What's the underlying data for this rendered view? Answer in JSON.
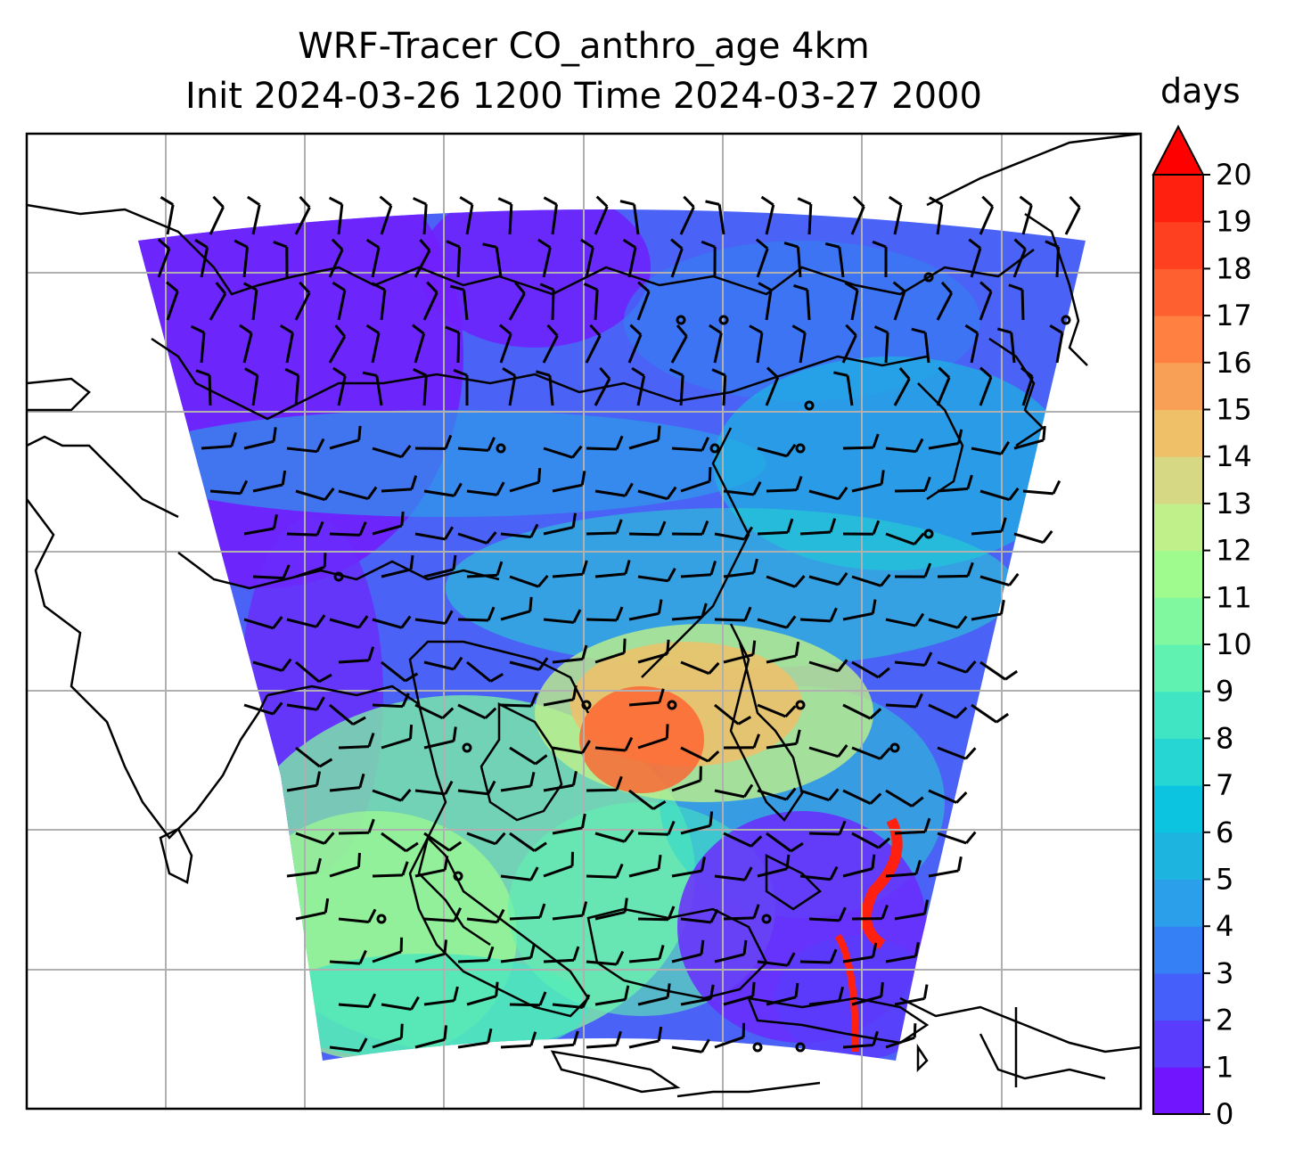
{
  "title_line1": "WRF-Tracer CO_anthro_age 4km",
  "title_line2": "Init 2024-03-26 1200 Time 2024-03-27 2000",
  "colorbar": {
    "label": "days",
    "min": 0,
    "max": 20,
    "ticks": [
      "0",
      "1",
      "2",
      "3",
      "4",
      "5",
      "6",
      "7",
      "8",
      "9",
      "10",
      "11",
      "12",
      "13",
      "14",
      "15",
      "16",
      "17",
      "18",
      "19",
      "20"
    ],
    "extend": "max",
    "colors": [
      "#7215ff",
      "#5a3cfc",
      "#4560fa",
      "#3480f4",
      "#2b9fe9",
      "#1db4e0",
      "#0cc4e0",
      "#25d6d2",
      "#40e6c4",
      "#60f2b0",
      "#80f8a0",
      "#a0fb8e",
      "#bff08a",
      "#d6d884",
      "#f0c068",
      "#f8a055",
      "#ff8040",
      "#ff6030",
      "#ff4020",
      "#ff2010",
      "#ff0000"
    ]
  },
  "map": {
    "projection": "lambert",
    "gridlines": true,
    "field": "CO_anthro_age",
    "wind_barbs": true
  }
}
